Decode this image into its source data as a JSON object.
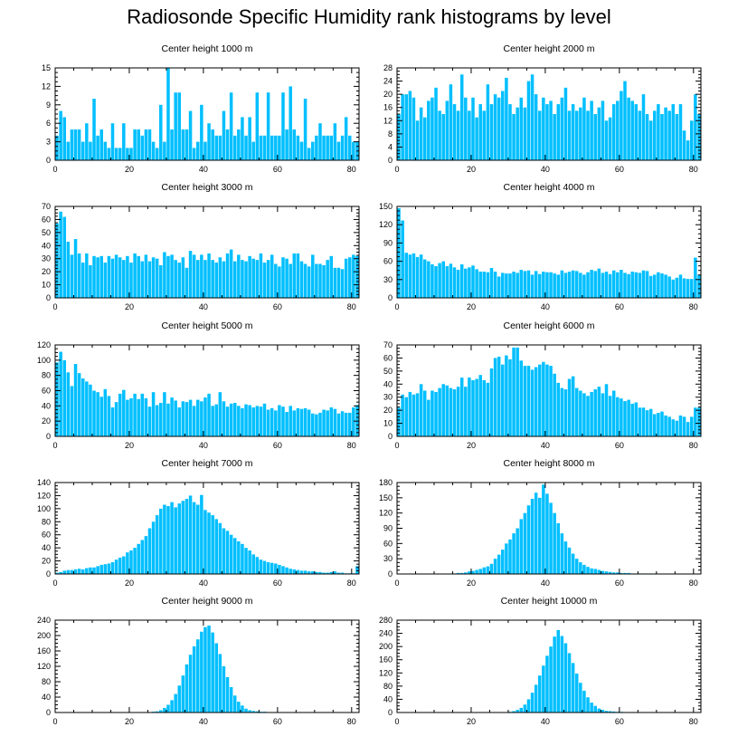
{
  "title": "Radiosonde Specific Humidity rank histograms by level",
  "bar_color": "#00bfff",
  "chart_data": [
    {
      "type": "bar",
      "title": "Center height 1000 m",
      "ylim": [
        0,
        15
      ],
      "yticks": [
        0,
        3,
        6,
        9,
        12,
        15
      ],
      "xticks": [
        0,
        20,
        40,
        60,
        80
      ],
      "xlim": [
        0,
        82
      ],
      "values": [
        4,
        8,
        7,
        3,
        5,
        5,
        5,
        3,
        6,
        3,
        10,
        4,
        5,
        3,
        2,
        6,
        2,
        2,
        6,
        2,
        2,
        5,
        5,
        4,
        5,
        5,
        3,
        2,
        9,
        3,
        15,
        5,
        11,
        11,
        5,
        5,
        8,
        2,
        3,
        9,
        3,
        6,
        5,
        4,
        4,
        8,
        5,
        11,
        4,
        5,
        7,
        4,
        7,
        3,
        11,
        4,
        4,
        11,
        4,
        4,
        4,
        11,
        5,
        12,
        5,
        4,
        3,
        10,
        2,
        3,
        4,
        6,
        4,
        4,
        4,
        6,
        3,
        4,
        7,
        4,
        3,
        3
      ]
    },
    {
      "type": "bar",
      "title": "Center height 2000 m",
      "ylim": [
        0,
        28
      ],
      "yticks": [
        0,
        4,
        8,
        12,
        16,
        20,
        24,
        28
      ],
      "xticks": [
        0,
        20,
        40,
        60,
        80
      ],
      "xlim": [
        0,
        82
      ],
      "values": [
        14,
        20,
        20,
        21,
        19,
        12,
        16,
        13,
        18,
        19,
        22,
        15,
        14,
        18,
        23,
        17,
        15,
        26,
        19,
        15,
        19,
        13,
        17,
        15,
        23,
        17,
        20,
        19,
        21,
        25,
        17,
        14,
        16,
        19,
        16,
        24,
        26,
        20,
        15,
        19,
        17,
        18,
        14,
        17,
        19,
        22,
        15,
        17,
        15,
        16,
        19,
        15,
        18,
        14,
        16,
        18,
        12,
        13,
        17,
        18,
        21,
        24,
        19,
        18,
        17,
        15,
        20,
        14,
        12,
        15,
        17,
        14,
        16,
        15,
        17,
        14,
        17,
        9,
        6,
        12,
        20,
        14
      ]
    },
    {
      "type": "bar",
      "title": "Center height 3000 m",
      "ylim": [
        0,
        70
      ],
      "yticks": [
        0,
        10,
        20,
        30,
        40,
        50,
        60,
        70
      ],
      "xticks": [
        0,
        20,
        40,
        60,
        80
      ],
      "xlim": [
        0,
        82
      ],
      "values": [
        57,
        66,
        62,
        43,
        33,
        45,
        34,
        27,
        34,
        25,
        32,
        31,
        32,
        27,
        32,
        30,
        33,
        31,
        29,
        32,
        27,
        34,
        32,
        28,
        33,
        28,
        31,
        30,
        25,
        35,
        32,
        33,
        29,
        27,
        31,
        23,
        36,
        33,
        29,
        33,
        29,
        34,
        29,
        27,
        31,
        28,
        34,
        37,
        28,
        33,
        29,
        28,
        32,
        30,
        29,
        34,
        27,
        29,
        33,
        26,
        24,
        31,
        30,
        26,
        34,
        34,
        28,
        26,
        24,
        33,
        26,
        26,
        25,
        29,
        32,
        23,
        23,
        22,
        30,
        31,
        33,
        32
      ]
    },
    {
      "type": "bar",
      "title": "Center height 4000 m",
      "ylim": [
        0,
        150
      ],
      "yticks": [
        0,
        30,
        60,
        90,
        120,
        150
      ],
      "xticks": [
        0,
        20,
        40,
        60,
        80
      ],
      "xlim": [
        0,
        82
      ],
      "values": [
        147,
        127,
        74,
        71,
        73,
        67,
        71,
        63,
        60,
        55,
        52,
        57,
        60,
        52,
        56,
        50,
        46,
        55,
        48,
        50,
        53,
        47,
        43,
        43,
        42,
        49,
        43,
        35,
        41,
        40,
        40,
        43,
        41,
        46,
        44,
        45,
        38,
        44,
        39,
        43,
        42,
        42,
        40,
        38,
        45,
        41,
        43,
        45,
        44,
        41,
        38,
        42,
        46,
        44,
        48,
        41,
        43,
        39,
        45,
        42,
        46,
        41,
        39,
        43,
        42,
        41,
        45,
        44,
        36,
        38,
        42,
        40,
        38,
        35,
        30,
        33,
        38,
        32,
        31,
        31,
        66,
        38
      ]
    },
    {
      "type": "bar",
      "title": "Center height 5000 m",
      "ylim": [
        0,
        120
      ],
      "yticks": [
        0,
        20,
        40,
        60,
        80,
        100,
        120
      ],
      "xticks": [
        0,
        20,
        40,
        60,
        80
      ],
      "xlim": [
        0,
        82
      ],
      "values": [
        97,
        111,
        100,
        84,
        66,
        95,
        83,
        76,
        72,
        68,
        60,
        58,
        52,
        62,
        53,
        38,
        45,
        56,
        61,
        48,
        50,
        56,
        49,
        56,
        50,
        39,
        58,
        41,
        44,
        58,
        43,
        51,
        47,
        38,
        46,
        45,
        48,
        40,
        48,
        46,
        51,
        56,
        40,
        42,
        58,
        46,
        39,
        43,
        44,
        40,
        37,
        42,
        41,
        38,
        40,
        39,
        43,
        35,
        37,
        34,
        41,
        39,
        32,
        40,
        34,
        37,
        36,
        37,
        35,
        30,
        29,
        31,
        35,
        34,
        38,
        36,
        30,
        33,
        31,
        31,
        38,
        41
      ]
    },
    {
      "type": "bar",
      "title": "Center height 6000 m",
      "ylim": [
        0,
        70
      ],
      "yticks": [
        0,
        10,
        20,
        30,
        40,
        50,
        60,
        70
      ],
      "xticks": [
        0,
        20,
        40,
        60,
        80
      ],
      "xlim": [
        0,
        82
      ],
      "values": [
        22,
        32,
        30,
        34,
        32,
        33,
        40,
        35,
        28,
        35,
        34,
        37,
        40,
        39,
        37,
        36,
        38,
        45,
        38,
        45,
        43,
        44,
        47,
        43,
        41,
        52,
        60,
        61,
        55,
        62,
        59,
        68,
        68,
        58,
        54,
        54,
        51,
        53,
        55,
        57,
        55,
        54,
        48,
        41,
        37,
        36,
        44,
        46,
        37,
        35,
        33,
        31,
        34,
        36,
        38,
        33,
        40,
        31,
        35,
        30,
        29,
        27,
        28,
        25,
        26,
        22,
        22,
        20,
        21,
        17,
        18,
        19,
        16,
        15,
        13,
        12,
        16,
        15,
        11,
        15,
        22,
        22
      ]
    },
    {
      "type": "bar",
      "title": "Center height 7000 m",
      "ylim": [
        0,
        140
      ],
      "yticks": [
        0,
        20,
        40,
        60,
        80,
        100,
        120,
        140
      ],
      "xticks": [
        0,
        20,
        40,
        60,
        80
      ],
      "xlim": [
        0,
        82
      ],
      "values": [
        2,
        3,
        5,
        6,
        6,
        7,
        8,
        7,
        9,
        10,
        10,
        12,
        14,
        15,
        16,
        18,
        22,
        25,
        27,
        33,
        36,
        40,
        46,
        52,
        58,
        70,
        80,
        90,
        100,
        106,
        104,
        110,
        102,
        108,
        112,
        115,
        120,
        110,
        106,
        121,
        98,
        94,
        90,
        84,
        78,
        70,
        66,
        60,
        55,
        50,
        46,
        40,
        36,
        30,
        26,
        22,
        20,
        18,
        17,
        16,
        14,
        12,
        10,
        8,
        7,
        6,
        5,
        5,
        4,
        4,
        3,
        3,
        2,
        2,
        3,
        4,
        2,
        2,
        1,
        1,
        1,
        12
      ]
    },
    {
      "type": "bar",
      "title": "Center height 8000 m",
      "ylim": [
        0,
        180
      ],
      "yticks": [
        0,
        30,
        60,
        90,
        120,
        150,
        180
      ],
      "xticks": [
        0,
        20,
        40,
        60,
        80
      ],
      "xlim": [
        0,
        82
      ],
      "values": [
        0,
        0,
        0,
        0,
        0,
        0,
        0,
        0,
        0,
        0,
        0,
        0,
        0,
        0,
        1,
        1,
        2,
        2,
        3,
        5,
        6,
        8,
        10,
        13,
        15,
        20,
        30,
        38,
        48,
        60,
        68,
        80,
        90,
        108,
        120,
        135,
        148,
        160,
        150,
        176,
        158,
        140,
        120,
        100,
        80,
        64,
        52,
        40,
        30,
        23,
        18,
        14,
        11,
        10,
        8,
        6,
        5,
        4,
        3,
        3,
        2,
        2,
        2,
        1,
        1,
        1,
        1,
        1,
        1,
        1,
        0,
        0,
        0,
        0,
        0,
        0,
        0,
        0,
        0,
        0,
        0,
        0
      ]
    },
    {
      "type": "bar",
      "title": "Center height 9000 m",
      "ylim": [
        0,
        240
      ],
      "yticks": [
        0,
        40,
        80,
        120,
        160,
        200,
        240
      ],
      "xticks": [
        0,
        20,
        40,
        60,
        80
      ],
      "xlim": [
        0,
        82
      ],
      "values": [
        0,
        0,
        0,
        0,
        0,
        0,
        0,
        0,
        0,
        0,
        0,
        0,
        0,
        0,
        0,
        0,
        0,
        0,
        0,
        0,
        0,
        0,
        0,
        0,
        0,
        1,
        2,
        3,
        6,
        12,
        20,
        32,
        48,
        70,
        96,
        125,
        150,
        172,
        190,
        210,
        222,
        226,
        208,
        180,
        152,
        120,
        92,
        66,
        44,
        28,
        18,
        10,
        6,
        4,
        3,
        2,
        2,
        1,
        1,
        1,
        1,
        1,
        0,
        0,
        0,
        0,
        0,
        0,
        0,
        0,
        0,
        0,
        0,
        0,
        0,
        0,
        0,
        0,
        0,
        0,
        0,
        0
      ]
    },
    {
      "type": "bar",
      "title": "Center height 10000 m",
      "ylim": [
        0,
        280
      ],
      "yticks": [
        0,
        40,
        80,
        120,
        160,
        200,
        240,
        280
      ],
      "xticks": [
        0,
        20,
        40,
        60,
        80
      ],
      "xlim": [
        0,
        82
      ],
      "values": [
        0,
        0,
        0,
        0,
        0,
        0,
        0,
        0,
        0,
        0,
        0,
        0,
        0,
        0,
        0,
        0,
        0,
        0,
        0,
        0,
        0,
        0,
        0,
        0,
        0,
        0,
        0,
        0,
        0,
        1,
        2,
        4,
        8,
        14,
        24,
        40,
        60,
        84,
        112,
        142,
        172,
        200,
        230,
        250,
        232,
        210,
        180,
        150,
        118,
        90,
        66,
        46,
        30,
        20,
        12,
        8,
        5,
        4,
        3,
        2,
        2,
        1,
        1,
        1,
        0,
        0,
        0,
        0,
        0,
        0,
        0,
        0,
        0,
        0,
        0,
        0,
        0,
        0,
        0,
        0,
        0,
        0
      ]
    }
  ]
}
